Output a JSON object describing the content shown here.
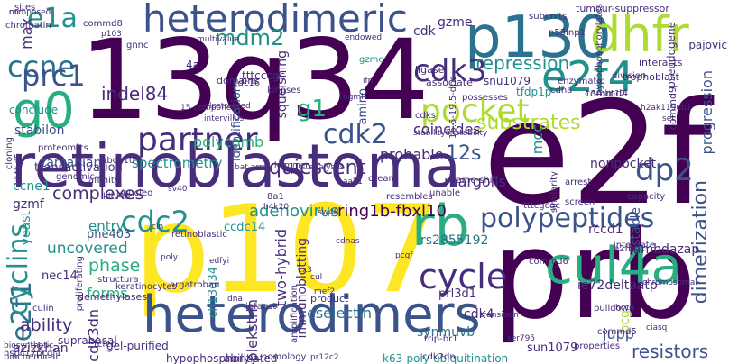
{
  "colors": {
    "dark_purple": "#440154",
    "indigo": "#472d7b",
    "slate_blue": "#3b528b",
    "steel_blue": "#2c728e",
    "teal": "#21918c",
    "sea_green": "#28ae80",
    "green": "#5ec962",
    "lime": "#addc30",
    "yellow": "#fde725"
  },
  "words": [
    {
      "text": "13q34",
      "c": "dark_purple",
      "r": false
    },
    {
      "text": "e2f",
      "c": "dark_purple",
      "r": false
    },
    {
      "text": "prb",
      "c": "dark_purple",
      "r": false
    },
    {
      "text": "p107",
      "c": "yellow",
      "r": false
    },
    {
      "text": "retinoblastoma",
      "c": "indigo",
      "r": false
    },
    {
      "text": "p130",
      "c": "steel_blue",
      "r": false
    },
    {
      "text": "heterodimers",
      "c": "slate_blue",
      "r": false
    },
    {
      "text": "heterodimeric",
      "c": "slate_blue",
      "r": false
    },
    {
      "text": "e2f4",
      "c": "teal",
      "r": false
    },
    {
      "text": "dhfr",
      "c": "lime",
      "r": false
    },
    {
      "text": "cul4a",
      "c": "sea_green",
      "r": false
    },
    {
      "text": "rb",
      "c": "sea_green",
      "r": false
    },
    {
      "text": "g0",
      "c": "sea_green",
      "r": false
    },
    {
      "text": "e2f1",
      "c": "steel_blue",
      "r": true
    },
    {
      "text": "cyclins",
      "c": "teal",
      "r": true
    },
    {
      "text": "dp2",
      "c": "slate_blue",
      "r": false
    },
    {
      "text": "partner",
      "c": "indigo",
      "r": false
    },
    {
      "text": "pocket",
      "c": "lime",
      "r": false
    },
    {
      "text": "cycle",
      "c": "indigo",
      "r": false
    },
    {
      "text": "polypeptides",
      "c": "slate_blue",
      "r": false
    },
    {
      "text": "cdk2",
      "c": "slate_blue",
      "r": false
    },
    {
      "text": "cdc2",
      "c": "teal",
      "r": false
    },
    {
      "text": "cdk3",
      "c": "indigo",
      "r": false
    },
    {
      "text": "ccne",
      "c": "steel_blue",
      "r": false
    },
    {
      "text": "prc1",
      "c": "slate_blue",
      "r": false
    },
    {
      "text": "e1a",
      "c": "teal",
      "r": false
    },
    {
      "text": "mdm2",
      "c": "teal",
      "r": false
    },
    {
      "text": "g1",
      "c": "sea_green",
      "r": false
    },
    {
      "text": "12s",
      "c": "slate_blue",
      "r": false
    },
    {
      "text": "quiescent",
      "c": "indigo",
      "r": false
    },
    {
      "text": "adenovirus",
      "c": "teal",
      "r": false
    },
    {
      "text": "ring1b-fbxl10",
      "c": "dark_purple",
      "r": false
    },
    {
      "text": "substrates",
      "c": "lime",
      "r": false
    },
    {
      "text": "repression",
      "c": "teal",
      "r": false
    },
    {
      "text": "dimerization",
      "c": "slate_blue",
      "r": true
    },
    {
      "text": "indel84",
      "c": "indigo",
      "r": false
    },
    {
      "text": "complexes",
      "c": "indigo",
      "r": false
    },
    {
      "text": "uncovered",
      "c": "teal",
      "r": false
    },
    {
      "text": "phase",
      "c": "sea_green",
      "r": false
    },
    {
      "text": "forms",
      "c": "sea_green",
      "r": false
    },
    {
      "text": "ability",
      "c": "indigo",
      "r": false
    },
    {
      "text": "polycomb",
      "c": "sea_green",
      "r": false
    },
    {
      "text": "coincides",
      "c": "indigo",
      "r": false
    },
    {
      "text": "probable",
      "c": "indigo",
      "r": false
    },
    {
      "text": "spectrometry",
      "c": "teal",
      "r": false
    },
    {
      "text": "progression",
      "c": "slate_blue",
      "r": true
    },
    {
      "text": "mcc",
      "c": "teal",
      "r": true
    },
    {
      "text": "stable",
      "c": "slate_blue",
      "r": true
    },
    {
      "text": "entry",
      "c": "teal",
      "r": false
    },
    {
      "text": "two-hybrid",
      "c": "indigo",
      "r": true
    },
    {
      "text": "plekstrin",
      "c": "indigo",
      "r": true
    },
    {
      "text": "cdk4",
      "c": "indigo",
      "r": false
    },
    {
      "text": "jupp",
      "c": "slate_blue",
      "r": false
    },
    {
      "text": "eselectin",
      "c": "steel_blue",
      "r": false
    },
    {
      "text": "resistors",
      "c": "slate_blue",
      "r": false
    },
    {
      "text": "synmuvb",
      "c": "steel_blue",
      "r": false
    },
    {
      "text": "ie72deltaatp",
      "c": "indigo",
      "r": false
    },
    {
      "text": "rs2855192",
      "c": "steel_blue",
      "r": false
    },
    {
      "text": "pcg",
      "c": "lime",
      "r": true
    },
    {
      "text": "immunoblotting",
      "c": "indigo",
      "r": true
    },
    {
      "text": "ch13q34",
      "c": "teal",
      "r": true
    },
    {
      "text": "nonpocket",
      "c": "indigo",
      "r": false
    },
    {
      "text": "margolis",
      "c": "indigo",
      "r": false
    },
    {
      "text": "rccd1",
      "c": "indigo",
      "r": false
    },
    {
      "text": "lambdazap",
      "c": "indigo",
      "r": false
    },
    {
      "text": "gzme",
      "c": "indigo",
      "r": false
    },
    {
      "text": "cdk",
      "c": "indigo",
      "r": false
    },
    {
      "text": "max",
      "c": "indigo",
      "r": true
    },
    {
      "text": "stabilon",
      "c": "slate_blue",
      "r": false
    },
    {
      "text": "zamanian",
      "c": "slate_blue",
      "r": false
    },
    {
      "text": "yeast",
      "c": "teal",
      "r": true
    },
    {
      "text": "azizkhan",
      "c": "indigo",
      "r": false
    },
    {
      "text": "phe403",
      "c": "slate_blue",
      "r": false
    },
    {
      "text": "gzmf",
      "c": "indigo",
      "r": false
    },
    {
      "text": "ccne1",
      "c": "teal",
      "r": false
    },
    {
      "text": "nec14",
      "c": "indigo",
      "r": false
    },
    {
      "text": "amino",
      "c": "slate_blue",
      "r": true
    },
    {
      "text": "identification",
      "c": "slate_blue",
      "r": true
    },
    {
      "text": "squelshing",
      "c": "indigo",
      "r": true
    },
    {
      "text": "4a",
      "c": "indigo",
      "r": false
    },
    {
      "text": "tttcccgc",
      "c": "indigo",
      "r": false
    },
    {
      "text": "ccdc14",
      "c": "teal",
      "r": false
    },
    {
      "text": "prl3d1",
      "c": "indigo",
      "r": false
    },
    {
      "text": "sun1079",
      "c": "indigo",
      "r": false
    },
    {
      "text": "snu1079",
      "c": "indigo",
      "r": false
    },
    {
      "text": "tfdp1p",
      "c": "teal",
      "r": false
    },
    {
      "text": "pajovic",
      "c": "indigo",
      "r": false
    },
    {
      "text": "cdk3dn",
      "c": "indigo",
      "r": true
    },
    {
      "text": "ability",
      "c": "indigo",
      "r": false
    },
    {
      "text": "k63-poly-ubiquitination",
      "c": "teal",
      "r": false
    },
    {
      "text": "hypophosphorylated",
      "c": "indigo",
      "r": false
    },
    {
      "text": "gel-purified",
      "c": "indigo",
      "r": false
    },
    {
      "text": "suprabasal",
      "c": "indigo",
      "r": false
    },
    {
      "text": "nspc17pcgf1",
      "c": "indigo",
      "r": false
    },
    {
      "text": "biochemical",
      "c": "indigo",
      "r": false
    },
    {
      "text": "biosynthetic",
      "c": "indigo",
      "r": false
    },
    {
      "text": "conclude",
      "c": "teal",
      "r": false
    },
    {
      "text": "transactivation",
      "c": "indigo",
      "r": false
    },
    {
      "text": "gzmc",
      "c": "teal",
      "r": false
    },
    {
      "text": "ligase",
      "c": "indigo",
      "r": false
    },
    {
      "text": "associate",
      "c": "indigo",
      "r": false
    },
    {
      "text": "division",
      "c": "indigo",
      "r": false
    },
    {
      "text": "trophoblast",
      "c": "indigo",
      "r": false
    },
    {
      "text": "interacts",
      "c": "indigo",
      "r": false
    },
    {
      "text": "pseudogene",
      "c": "indigo",
      "r": true
    },
    {
      "text": "hypophosphorylates",
      "c": "indigo",
      "r": true
    },
    {
      "text": "tumour-suppressor",
      "c": "indigo",
      "r": false
    },
    {
      "text": "subunits",
      "c": "indigo",
      "r": false
    },
    {
      "text": "p53inp1",
      "c": "indigo",
      "r": false
    },
    {
      "text": "sites",
      "c": "indigo",
      "r": false
    },
    {
      "text": "commd4",
      "c": "indigo",
      "r": false
    },
    {
      "text": "commd6",
      "c": "indigo",
      "r": false
    },
    {
      "text": "commd5",
      "c": "indigo",
      "r": false
    },
    {
      "text": "commd9",
      "c": "indigo",
      "r": true
    },
    {
      "text": "chromatin",
      "c": "indigo",
      "r": false
    },
    {
      "text": "commd8",
      "c": "indigo",
      "r": false
    },
    {
      "text": "p103",
      "c": "indigo",
      "r": false
    },
    {
      "text": "gnnc",
      "c": "indigo",
      "r": false
    },
    {
      "text": "domains",
      "c": "indigo",
      "r": false
    },
    {
      "text": "kinases",
      "c": "indigo",
      "r": false
    },
    {
      "text": "possesses",
      "c": "indigo",
      "r": false
    },
    {
      "text": "cdks",
      "c": "indigo",
      "r": false
    },
    {
      "text": "cdc16",
      "c": "indigo",
      "r": false
    },
    {
      "text": "13mbt12",
      "c": "indigo",
      "r": false
    },
    {
      "text": "enzymatic",
      "c": "indigo",
      "r": false
    },
    {
      "text": "structura",
      "c": "indigo",
      "r": false
    },
    {
      "text": "tcfeb",
      "c": "indigo",
      "r": false
    },
    {
      "text": "culin",
      "c": "indigo",
      "r": false
    },
    {
      "text": "demethylases",
      "c": "indigo",
      "r": false
    },
    {
      "text": "keratinocytes",
      "c": "indigo",
      "r": false
    },
    {
      "text": "retinoblastic",
      "c": "indigo",
      "r": false
    },
    {
      "text": "integrate",
      "c": "indigo",
      "r": false
    },
    {
      "text": "capacity",
      "c": "indigo",
      "r": false
    },
    {
      "text": "e2fbp1",
      "c": "indigo",
      "r": false
    },
    {
      "text": "pulldown",
      "c": "indigo",
      "r": false
    },
    {
      "text": "properties",
      "c": "indigo",
      "r": false
    },
    {
      "text": "cdk2dn",
      "c": "indigo",
      "r": false
    },
    {
      "text": "transition",
      "c": "indigo",
      "r": false
    },
    {
      "text": "argatroban",
      "c": "indigo",
      "r": false
    },
    {
      "text": "infaust",
      "c": "indigo",
      "r": false
    },
    {
      "text": "amplification",
      "c": "indigo",
      "r": true
    },
    {
      "text": "product",
      "c": "indigo",
      "r": false
    },
    {
      "text": "homology",
      "c": "indigo",
      "r": false
    },
    {
      "text": "trip-br1",
      "c": "indigo",
      "r": false
    },
    {
      "text": "resembles",
      "c": "indigo",
      "r": false
    },
    {
      "text": "similarity",
      "c": "indigo",
      "r": true
    },
    {
      "text": "tttcgcgc",
      "c": "indigo",
      "r": false
    },
    {
      "text": "arrest",
      "c": "indigo",
      "r": false
    },
    {
      "text": "unable",
      "c": "indigo",
      "r": false
    },
    {
      "text": "frame-shift",
      "c": "indigo",
      "r": false
    },
    {
      "text": "8a1",
      "c": "indigo",
      "r": false
    },
    {
      "text": "dream",
      "c": "indigo",
      "r": false
    },
    {
      "text": "klhl40",
      "c": "indigo",
      "r": false
    },
    {
      "text": "nucleo",
      "c": "indigo",
      "r": false
    },
    {
      "text": "affinity",
      "c": "indigo",
      "r": false
    },
    {
      "text": "cloning",
      "c": "indigo",
      "r": true
    },
    {
      "text": "genomic",
      "c": "indigo",
      "r": false
    },
    {
      "text": "proliferating",
      "c": "indigo",
      "r": true
    },
    {
      "text": "ubch10",
      "c": "indigo",
      "r": false
    },
    {
      "text": "proteomics",
      "c": "indigo",
      "r": false
    },
    {
      "text": "kbtbd5",
      "c": "indigo",
      "r": true
    },
    {
      "text": "screen",
      "c": "indigo",
      "r": false
    },
    {
      "text": "cdna",
      "c": "indigo",
      "r": false
    },
    {
      "text": "16.5-19.5-dpc",
      "c": "indigo",
      "r": true
    },
    {
      "text": "pr12c2",
      "c": "indigo",
      "r": false
    },
    {
      "text": "lpstreated",
      "c": "indigo",
      "r": false
    },
    {
      "text": "15-component",
      "c": "indigo",
      "r": false
    },
    {
      "text": "h2ak119ub1",
      "c": "indigo",
      "r": false
    },
    {
      "text": "stabilitylinstability",
      "c": "indigo",
      "r": false
    },
    {
      "text": "multivalue",
      "c": "indigo",
      "r": false
    },
    {
      "text": "endowed",
      "c": "indigo",
      "r": false
    },
    {
      "text": "intervillus",
      "c": "indigo",
      "r": false
    },
    {
      "text": "bat-array",
      "c": "indigo",
      "r": false
    },
    {
      "text": "hammer",
      "c": "indigo",
      "r": false
    },
    {
      "text": "analyses",
      "c": "indigo",
      "r": false
    },
    {
      "text": "cul",
      "c": "indigo",
      "r": false
    },
    {
      "text": "cx3",
      "c": "indigo",
      "r": false
    },
    {
      "text": "mef2",
      "c": "indigo",
      "r": false
    },
    {
      "text": "ser795",
      "c": "indigo",
      "r": false
    },
    {
      "text": "aak1",
      "c": "indigo",
      "r": false
    },
    {
      "text": "hccs",
      "c": "indigo",
      "r": false
    },
    {
      "text": "set",
      "c": "indigo",
      "r": false
    },
    {
      "text": "ciasq",
      "c": "indigo",
      "r": false
    },
    {
      "text": "chromosomal",
      "c": "indigo",
      "r": false
    },
    {
      "text": "dna",
      "c": "indigo",
      "r": false
    },
    {
      "text": "sw48",
      "c": "indigo",
      "r": false
    },
    {
      "text": "sv40",
      "c": "indigo",
      "r": false
    },
    {
      "text": "h4k20",
      "c": "indigo",
      "r": false
    },
    {
      "text": "poly",
      "c": "indigo",
      "r": false
    },
    {
      "text": "cln",
      "c": "indigo",
      "r": false
    },
    {
      "text": "edfyi",
      "c": "indigo",
      "r": false
    },
    {
      "text": "cdnas",
      "c": "indigo",
      "r": false
    },
    {
      "text": "pcgf",
      "c": "indigo",
      "r": false
    },
    {
      "text": "ngml",
      "c": "indigo",
      "r": false
    },
    {
      "text": "ifn",
      "c": "indigo",
      "r": false
    },
    {
      "text": "mcl",
      "c": "indigo",
      "r": false
    },
    {
      "text": "composed",
      "c": "indigo",
      "r": false
    }
  ]
}
